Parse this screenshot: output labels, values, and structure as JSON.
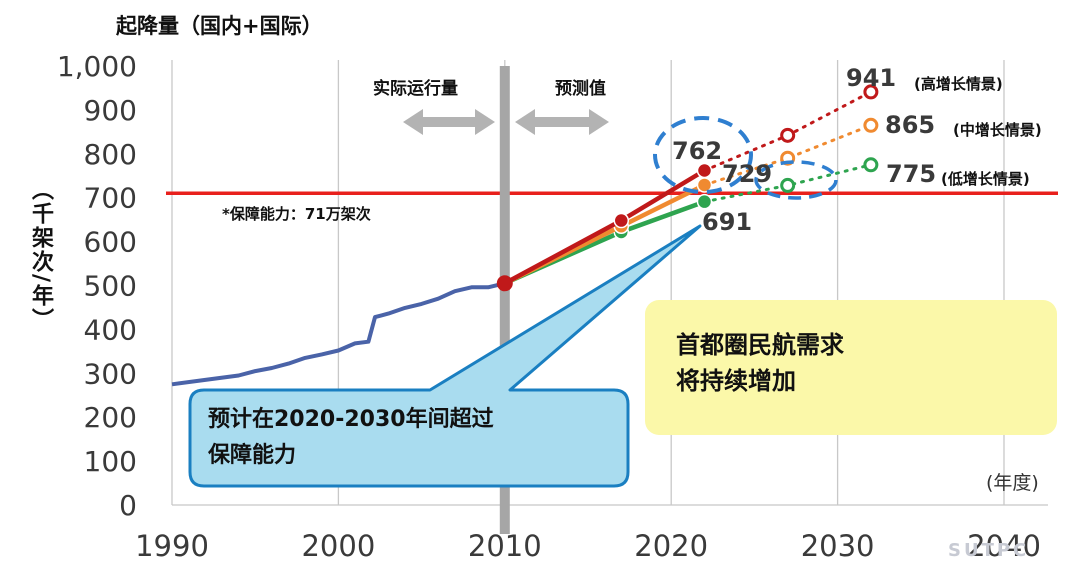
{
  "title": "起降量（国内+国际）",
  "ylabel": "（千架次/年）",
  "x_unit": "(年度)",
  "region_labels": {
    "actual": "实际运行量",
    "forecast": "预测值"
  },
  "capacity_note": "*保障能力：71万架次",
  "scenario_labels": {
    "high": "(高增长情景)",
    "mid": "(中增长情景)",
    "low": "(低增长情景)"
  },
  "value_labels": {
    "v941": "941",
    "v865": "865",
    "v775": "775",
    "v762": "762",
    "v729": "729",
    "v691": "691"
  },
  "callout_yellow": {
    "line1": "首都圈民航需求",
    "line2": "将持续增加"
  },
  "callout_blue": {
    "line1": "预计在2020-2030年间超过",
    "line2": "保障能力"
  },
  "watermark": "SUTPC",
  "colors": {
    "historical": "#4a63a8",
    "high": "#c0191a",
    "mid": "#f08a30",
    "low": "#2ea44f",
    "capacity": "#e8201c",
    "divider": "#a6a6a6",
    "callout_blue_fill": "#a9dcef",
    "callout_blue_border": "#1a7fc1",
    "callout_yellow_fill": "#fbf8a9",
    "ellipse": "#2f7fd0"
  },
  "chart_data": {
    "type": "line",
    "xlim": [
      1990,
      2040
    ],
    "ylim": [
      0,
      1000
    ],
    "xticks": [
      1990,
      2000,
      2010,
      2020,
      2030,
      2040
    ],
    "yticks": [
      0,
      100,
      200,
      300,
      400,
      500,
      600,
      700,
      800,
      900,
      1000
    ],
    "ytick_labels": [
      "0",
      "100",
      "200",
      "300",
      "400",
      "500",
      "600",
      "700",
      "800",
      "900",
      "1,000"
    ],
    "grid": "vertical",
    "capacity": 710,
    "divider_year": 2010,
    "series": [
      {
        "key": "historical",
        "x": [
          1990,
          1992,
          1994,
          1995,
          1996,
          1997,
          1998,
          1999,
          2000,
          2001,
          2001.8,
          2002.2,
          2003,
          2004,
          2005,
          2006,
          2007,
          2008,
          2009,
          2010
        ],
        "y": [
          275,
          285,
          295,
          305,
          312,
          322,
          335,
          343,
          352,
          368,
          372,
          428,
          436,
          449,
          458,
          470,
          487,
          496,
          496,
          505
        ]
      },
      {
        "key": "low",
        "x": [
          2010,
          2017,
          2022
        ],
        "y": [
          505,
          622,
          691
        ]
      },
      {
        "key": "mid",
        "x": [
          2010,
          2017,
          2022
        ],
        "y": [
          505,
          635,
          729
        ]
      },
      {
        "key": "high",
        "x": [
          2010,
          2017,
          2022
        ],
        "y": [
          505,
          648,
          762
        ]
      },
      {
        "key": "high",
        "x": [
          2022,
          2027,
          2032
        ],
        "y": [
          762,
          842,
          941
        ],
        "dotted": true
      },
      {
        "key": "mid",
        "x": [
          2022,
          2027,
          2032
        ],
        "y": [
          729,
          790,
          865
        ],
        "dotted": true
      },
      {
        "key": "low",
        "x": [
          2022,
          2027,
          2032
        ],
        "y": [
          691,
          728,
          775
        ],
        "dotted": true
      }
    ]
  }
}
